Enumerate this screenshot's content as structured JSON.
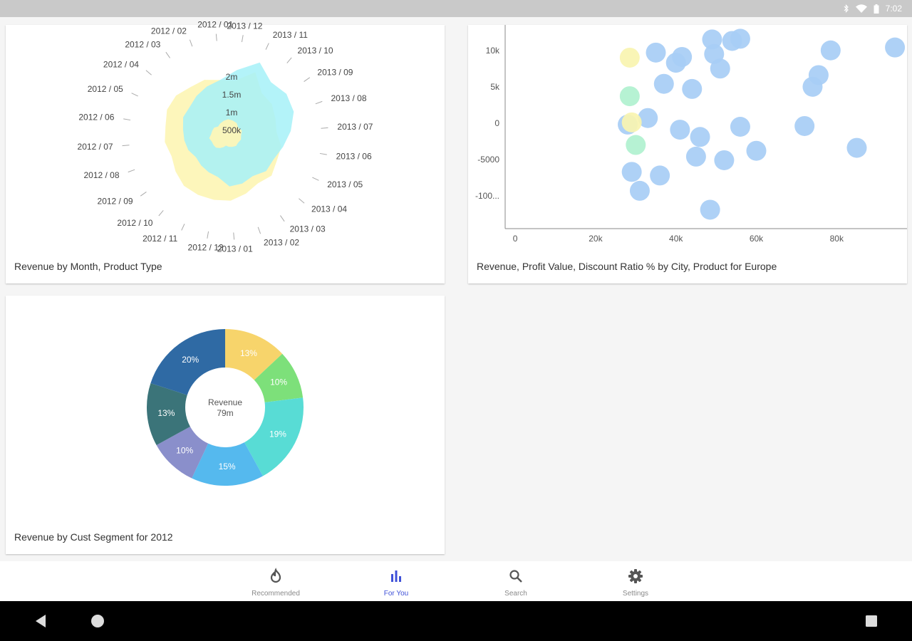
{
  "status_bar": {
    "time": "7:02",
    "icons": [
      "bluetooth-icon",
      "wifi-icon",
      "battery-icon"
    ]
  },
  "cards": {
    "radar": {
      "title": "Revenue by Month, Product Type"
    },
    "bubble": {
      "title": "Revenue, Profit Value, Discount Ratio % by City, Product  for  Europe"
    },
    "donut": {
      "title": "Revenue by Cust Segment  for 2012"
    }
  },
  "chart_data": [
    {
      "type": "radar",
      "categories": [
        "2013 / 12",
        "2013 / 11",
        "2013 / 10",
        "2013 / 09",
        "2013 / 08",
        "2013 / 07",
        "2013 / 06",
        "2013 / 05",
        "2013 / 04",
        "2013 / 03",
        "2013 / 02",
        "2013 / 01",
        "2012 / 12",
        "2012 / 11",
        "2012 / 10",
        "2012 / 09",
        "2012 / 08",
        "2012 / 07",
        "2012 / 06",
        "2012 / 05",
        "2012 / 04",
        "2012 / 03",
        "2012 / 02",
        "2012 / 01"
      ],
      "radial_ticks": [
        "500k",
        "1m",
        "1.5m",
        "2m"
      ],
      "rmax": 2500000,
      "series": [
        {
          "color": "#fdf6b7",
          "values": [
            1600000,
            2000000,
            1600000,
            1600000,
            1500000,
            1450000,
            1600000,
            1600000,
            1700000,
            1600000,
            1700000,
            1800000,
            1800000,
            1800000,
            1800000,
            1700000,
            1600000,
            1700000,
            1700000,
            1800000,
            1800000,
            1700000,
            1700000,
            1600000
          ]
        },
        {
          "color": "#a6f1f8",
          "values": [
            1900000,
            2300000,
            2000000,
            2100000,
            2050000,
            1850000,
            1650000,
            1500000,
            1500000,
            1350000,
            1400000,
            1400000,
            1150000,
            1100000,
            1050000,
            1000000,
            1100000,
            1150000,
            1200000,
            1300000,
            1300000,
            1400000,
            1500000,
            1600000
          ]
        },
        {
          "color": "#fdf6b7",
          "values": [
            500000,
            500000,
            500000,
            450000,
            500000,
            450000,
            450000,
            400000,
            400000,
            350000,
            300000,
            250000,
            300000,
            350000,
            400000,
            400000,
            400000,
            450000,
            400000,
            400000,
            400000,
            350000,
            400000,
            450000
          ]
        }
      ]
    },
    {
      "type": "scatter",
      "x_ticks": [
        "0",
        "20k",
        "40k",
        "60k",
        "80k"
      ],
      "y_ticks": [
        "10k",
        "5k",
        "0",
        "-5000",
        "-100..."
      ],
      "xlim": [
        -2500,
        97500
      ],
      "ylim": [
        -14500,
        13500
      ],
      "points": [
        {
          "x": 28500,
          "y": 9000,
          "color": "#f9f4b0"
        },
        {
          "x": 35000,
          "y": 9700,
          "color": "#a7cdf5"
        },
        {
          "x": 41500,
          "y": 9100,
          "color": "#a7cdf5"
        },
        {
          "x": 40000,
          "y": 8300,
          "color": "#a7cdf5"
        },
        {
          "x": 49000,
          "y": 11500,
          "color": "#a7cdf5"
        },
        {
          "x": 54000,
          "y": 11300,
          "color": "#a7cdf5"
        },
        {
          "x": 56000,
          "y": 11600,
          "color": "#a7cdf5"
        },
        {
          "x": 49500,
          "y": 9500,
          "color": "#a7cdf5"
        },
        {
          "x": 51000,
          "y": 7500,
          "color": "#a7cdf5"
        },
        {
          "x": 78500,
          "y": 10000,
          "color": "#a7cdf5"
        },
        {
          "x": 94500,
          "y": 10400,
          "color": "#a7cdf5"
        },
        {
          "x": 75500,
          "y": 6600,
          "color": "#a7cdf5"
        },
        {
          "x": 74000,
          "y": 5000,
          "color": "#a7cdf5"
        },
        {
          "x": 37000,
          "y": 5400,
          "color": "#a7cdf5"
        },
        {
          "x": 44000,
          "y": 4700,
          "color": "#a7cdf5"
        },
        {
          "x": 28500,
          "y": 3700,
          "color": "#b0f1cf"
        },
        {
          "x": 33000,
          "y": 700,
          "color": "#a7cdf5"
        },
        {
          "x": 28000,
          "y": -200,
          "color": "#a7cdf5"
        },
        {
          "x": 29000,
          "y": 100,
          "color": "#f9f4b0"
        },
        {
          "x": 41000,
          "y": -900,
          "color": "#a7cdf5"
        },
        {
          "x": 46000,
          "y": -1900,
          "color": "#a7cdf5"
        },
        {
          "x": 56000,
          "y": -500,
          "color": "#a7cdf5"
        },
        {
          "x": 72000,
          "y": -400,
          "color": "#a7cdf5"
        },
        {
          "x": 30000,
          "y": -3000,
          "color": "#b0f1cf"
        },
        {
          "x": 45000,
          "y": -4600,
          "color": "#a7cdf5"
        },
        {
          "x": 52000,
          "y": -5100,
          "color": "#a7cdf5"
        },
        {
          "x": 60000,
          "y": -3800,
          "color": "#a7cdf5"
        },
        {
          "x": 85000,
          "y": -3400,
          "color": "#a7cdf5"
        },
        {
          "x": 29000,
          "y": -6700,
          "color": "#a7cdf5"
        },
        {
          "x": 36000,
          "y": -7200,
          "color": "#a7cdf5"
        },
        {
          "x": 31000,
          "y": -9300,
          "color": "#a7cdf5"
        },
        {
          "x": 48500,
          "y": -11900,
          "color": "#a7cdf5"
        }
      ]
    },
    {
      "type": "pie",
      "center_label": "Revenue",
      "center_value": "79m",
      "slices": [
        {
          "label": "13%",
          "value": 13,
          "color": "#f7d46b"
        },
        {
          "label": "10%",
          "value": 10,
          "color": "#7de07a"
        },
        {
          "label": "19%",
          "value": 19,
          "color": "#58dcd5"
        },
        {
          "label": "15%",
          "value": 15,
          "color": "#55b9ee"
        },
        {
          "label": "10%",
          "value": 10,
          "color": "#8a8fcb"
        },
        {
          "label": "13%",
          "value": 13,
          "color": "#3b7479"
        },
        {
          "label": "20%",
          "value": 20,
          "color": "#2f6aa4"
        }
      ]
    }
  ],
  "bottom_nav": {
    "items": [
      {
        "label": "Recommended",
        "icon": "flame-icon"
      },
      {
        "label": "For You",
        "icon": "bar-chart-icon"
      },
      {
        "label": "Search",
        "icon": "search-icon"
      },
      {
        "label": "Settings",
        "icon": "gear-icon"
      }
    ],
    "active_color": "#3f51d8",
    "inactive_color": "#555555"
  }
}
